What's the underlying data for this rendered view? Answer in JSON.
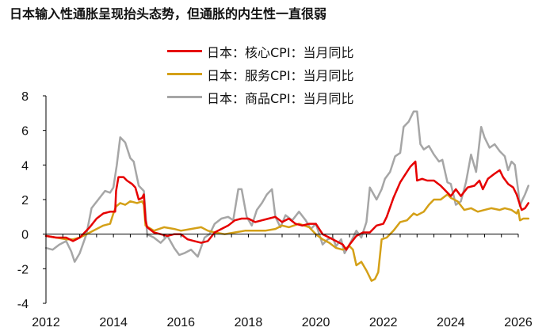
{
  "chart_data": {
    "type": "line",
    "title": "日本输入性通胀呈现抬头态势，但通胀的内生性一直很弱",
    "xlabel": "",
    "ylabel": "",
    "xlim": [
      2012.0,
      2026.1
    ],
    "ylim": [
      -4,
      8
    ],
    "x_ticks": [
      2012,
      2014,
      2016,
      2018,
      2020,
      2022,
      2024,
      2026
    ],
    "x_tick_labels": [
      "2012",
      "2014",
      "2016",
      "2018",
      "2020",
      "2022",
      "2024",
      "2026"
    ],
    "y_ticks": [
      -4,
      -2,
      0,
      2,
      4,
      6,
      8
    ],
    "y_tick_labels": [
      "-4",
      "-2",
      "0",
      "2",
      "4",
      "6",
      "8"
    ],
    "grid": false,
    "legend_position": "top-center",
    "series": [
      {
        "name": "日本：核心CPI：当月同比",
        "color": "#e60000",
        "points": [
          [
            2012.0,
            -0.1
          ],
          [
            2012.3,
            -0.2
          ],
          [
            2012.6,
            -0.2
          ],
          [
            2012.8,
            -0.4
          ],
          [
            2013.0,
            -0.2
          ],
          [
            2013.3,
            0.4
          ],
          [
            2013.5,
            0.9
          ],
          [
            2013.7,
            1.2
          ],
          [
            2013.9,
            1.3
          ],
          [
            2013.95,
            1.3
          ],
          [
            2014.05,
            1.3
          ],
          [
            2014.08,
            2.5
          ],
          [
            2014.15,
            3.3
          ],
          [
            2014.3,
            3.3
          ],
          [
            2014.4,
            3.1
          ],
          [
            2014.55,
            2.9
          ],
          [
            2014.65,
            2.7
          ],
          [
            2014.75,
            2.0
          ],
          [
            2014.85,
            2.1
          ],
          [
            2014.9,
            2.3
          ],
          [
            2014.95,
            0.8
          ],
          [
            2015.0,
            0.4
          ],
          [
            2015.2,
            0.1
          ],
          [
            2015.4,
            0.0
          ],
          [
            2015.6,
            -0.1
          ],
          [
            2015.8,
            0.0
          ],
          [
            2016.0,
            0.0
          ],
          [
            2016.2,
            -0.3
          ],
          [
            2016.4,
            -0.4
          ],
          [
            2016.6,
            -0.5
          ],
          [
            2016.8,
            -0.4
          ],
          [
            2017.0,
            0.1
          ],
          [
            2017.2,
            0.3
          ],
          [
            2017.4,
            0.5
          ],
          [
            2017.6,
            0.8
          ],
          [
            2017.8,
            0.9
          ],
          [
            2018.0,
            0.9
          ],
          [
            2018.2,
            0.7
          ],
          [
            2018.4,
            0.8
          ],
          [
            2018.6,
            0.9
          ],
          [
            2018.8,
            1.0
          ],
          [
            2019.0,
            0.7
          ],
          [
            2019.2,
            0.9
          ],
          [
            2019.4,
            0.6
          ],
          [
            2019.6,
            0.5
          ],
          [
            2019.8,
            0.6
          ],
          [
            2020.0,
            0.6
          ],
          [
            2020.2,
            0.0
          ],
          [
            2020.4,
            -0.2
          ],
          [
            2020.6,
            -0.4
          ],
          [
            2020.8,
            -0.6
          ],
          [
            2020.9,
            -0.9
          ],
          [
            2021.0,
            -0.6
          ],
          [
            2021.2,
            -0.1
          ],
          [
            2021.4,
            0.1
          ],
          [
            2021.6,
            0.1
          ],
          [
            2021.8,
            0.5
          ],
          [
            2022.0,
            0.6
          ],
          [
            2022.1,
            1.0
          ],
          [
            2022.3,
            2.1
          ],
          [
            2022.5,
            3.0
          ],
          [
            2022.7,
            3.6
          ],
          [
            2022.8,
            3.9
          ],
          [
            2022.95,
            4.2
          ],
          [
            2023.0,
            3.1
          ],
          [
            2023.15,
            3.2
          ],
          [
            2023.3,
            3.1
          ],
          [
            2023.5,
            3.1
          ],
          [
            2023.7,
            2.8
          ],
          [
            2023.9,
            2.4
          ],
          [
            2024.0,
            2.2
          ],
          [
            2024.15,
            2.6
          ],
          [
            2024.3,
            2.2
          ],
          [
            2024.5,
            2.7
          ],
          [
            2024.7,
            2.8
          ],
          [
            2024.85,
            3.1
          ],
          [
            2024.95,
            2.6
          ],
          [
            2025.1,
            3.2
          ],
          [
            2025.3,
            3.5
          ],
          [
            2025.45,
            3.7
          ],
          [
            2025.55,
            3.3
          ],
          [
            2025.7,
            2.9
          ],
          [
            2025.85,
            2.7
          ],
          [
            2025.95,
            2.3
          ],
          [
            2026.0,
            2.0
          ],
          [
            2026.05,
            1.7
          ],
          [
            2026.1,
            1.4
          ],
          [
            2026.2,
            1.5
          ],
          [
            2026.3,
            1.8
          ]
        ]
      },
      {
        "name": "日本：服务CPI：当月同比",
        "color": "#d4a017",
        "points": [
          [
            2012.0,
            -0.1
          ],
          [
            2012.3,
            -0.2
          ],
          [
            2012.6,
            -0.3
          ],
          [
            2012.8,
            -0.3
          ],
          [
            2013.0,
            -0.2
          ],
          [
            2013.2,
            0.0
          ],
          [
            2013.5,
            0.3
          ],
          [
            2013.7,
            0.5
          ],
          [
            2013.9,
            0.6
          ],
          [
            2014.0,
            1.2
          ],
          [
            2014.08,
            1.6
          ],
          [
            2014.2,
            1.8
          ],
          [
            2014.35,
            1.7
          ],
          [
            2014.5,
            1.9
          ],
          [
            2014.7,
            1.8
          ],
          [
            2014.85,
            1.9
          ],
          [
            2014.9,
            1.7
          ],
          [
            2014.95,
            0.5
          ],
          [
            2015.2,
            0.2
          ],
          [
            2015.5,
            0.4
          ],
          [
            2015.8,
            0.3
          ],
          [
            2016.0,
            0.2
          ],
          [
            2016.3,
            0.3
          ],
          [
            2016.6,
            0.4
          ],
          [
            2016.8,
            0.2
          ],
          [
            2017.0,
            0.1
          ],
          [
            2017.3,
            0.0
          ],
          [
            2017.6,
            0.1
          ],
          [
            2017.9,
            0.2
          ],
          [
            2018.2,
            0.2
          ],
          [
            2018.5,
            0.2
          ],
          [
            2018.8,
            0.3
          ],
          [
            2019.0,
            0.5
          ],
          [
            2019.2,
            0.4
          ],
          [
            2019.5,
            0.6
          ],
          [
            2019.8,
            0.4
          ],
          [
            2020.0,
            0.0
          ],
          [
            2020.2,
            -0.3
          ],
          [
            2020.4,
            -0.5
          ],
          [
            2020.6,
            -0.8
          ],
          [
            2020.8,
            -0.9
          ],
          [
            2021.0,
            -0.7
          ],
          [
            2021.1,
            -0.9
          ],
          [
            2021.2,
            -1.8
          ],
          [
            2021.35,
            -1.6
          ],
          [
            2021.5,
            -2.1
          ],
          [
            2021.65,
            -2.7
          ],
          [
            2021.75,
            -2.6
          ],
          [
            2021.85,
            -2.2
          ],
          [
            2021.95,
            -0.3
          ],
          [
            2022.1,
            -0.2
          ],
          [
            2022.3,
            0.2
          ],
          [
            2022.5,
            0.7
          ],
          [
            2022.7,
            0.8
          ],
          [
            2022.9,
            1.2
          ],
          [
            2023.0,
            1.1
          ],
          [
            2023.2,
            1.3
          ],
          [
            2023.35,
            1.7
          ],
          [
            2023.5,
            2.0
          ],
          [
            2023.7,
            2.0
          ],
          [
            2023.9,
            2.3
          ],
          [
            2024.0,
            2.1
          ],
          [
            2024.2,
            1.9
          ],
          [
            2024.4,
            1.4
          ],
          [
            2024.6,
            1.5
          ],
          [
            2024.8,
            1.3
          ],
          [
            2025.0,
            1.4
          ],
          [
            2025.2,
            1.5
          ],
          [
            2025.45,
            1.4
          ],
          [
            2025.6,
            1.5
          ],
          [
            2025.8,
            1.4
          ],
          [
            2025.95,
            1.2
          ],
          [
            2026.0,
            1.4
          ],
          [
            2026.05,
            0.8
          ],
          [
            2026.15,
            0.9
          ],
          [
            2026.3,
            0.9
          ]
        ]
      },
      {
        "name": "日本：商品CPI：当月同比",
        "color": "#a6a6a6",
        "points": [
          [
            2012.0,
            -0.8
          ],
          [
            2012.2,
            -0.9
          ],
          [
            2012.4,
            -0.6
          ],
          [
            2012.6,
            -0.4
          ],
          [
            2012.75,
            -1.0
          ],
          [
            2012.85,
            -1.6
          ],
          [
            2013.0,
            -1.1
          ],
          [
            2013.2,
            0.0
          ],
          [
            2013.35,
            1.5
          ],
          [
            2013.55,
            2.0
          ],
          [
            2013.75,
            2.5
          ],
          [
            2013.9,
            2.4
          ],
          [
            2014.0,
            2.7
          ],
          [
            2014.1,
            4.0
          ],
          [
            2014.2,
            5.6
          ],
          [
            2014.35,
            5.3
          ],
          [
            2014.5,
            4.4
          ],
          [
            2014.6,
            4.2
          ],
          [
            2014.75,
            2.8
          ],
          [
            2014.9,
            2.5
          ],
          [
            2015.0,
            0.0
          ],
          [
            2015.2,
            -0.2
          ],
          [
            2015.4,
            -0.5
          ],
          [
            2015.6,
            -0.1
          ],
          [
            2015.8,
            -0.8
          ],
          [
            2015.95,
            -1.2
          ],
          [
            2016.1,
            -1.1
          ],
          [
            2016.3,
            -0.9
          ],
          [
            2016.5,
            -1.3
          ],
          [
            2016.7,
            -0.2
          ],
          [
            2016.85,
            0.0
          ],
          [
            2017.0,
            0.6
          ],
          [
            2017.2,
            0.9
          ],
          [
            2017.4,
            1.0
          ],
          [
            2017.55,
            0.8
          ],
          [
            2017.7,
            2.6
          ],
          [
            2017.8,
            2.6
          ],
          [
            2017.95,
            1.0
          ],
          [
            2018.1,
            0.5
          ],
          [
            2018.25,
            1.4
          ],
          [
            2018.4,
            1.8
          ],
          [
            2018.55,
            2.3
          ],
          [
            2018.7,
            2.6
          ],
          [
            2018.8,
            1.0
          ],
          [
            2018.95,
            0.4
          ],
          [
            2019.1,
            1.1
          ],
          [
            2019.3,
            0.8
          ],
          [
            2019.5,
            1.3
          ],
          [
            2019.7,
            0.8
          ],
          [
            2019.85,
            0.3
          ],
          [
            2020.0,
            0.6
          ],
          [
            2020.2,
            -0.6
          ],
          [
            2020.35,
            -0.3
          ],
          [
            2020.5,
            -0.2
          ],
          [
            2020.6,
            -0.7
          ],
          [
            2020.75,
            -0.3
          ],
          [
            2020.85,
            -1.1
          ],
          [
            2021.0,
            -0.6
          ],
          [
            2021.2,
            0.2
          ],
          [
            2021.35,
            -0.2
          ],
          [
            2021.5,
            0.7
          ],
          [
            2021.6,
            2.7
          ],
          [
            2021.8,
            2.0
          ],
          [
            2021.95,
            2.6
          ],
          [
            2022.05,
            3.2
          ],
          [
            2022.2,
            3.6
          ],
          [
            2022.35,
            4.5
          ],
          [
            2022.5,
            4.7
          ],
          [
            2022.6,
            6.2
          ],
          [
            2022.75,
            6.5
          ],
          [
            2022.9,
            7.1
          ],
          [
            2023.0,
            7.1
          ],
          [
            2023.1,
            5.2
          ],
          [
            2023.2,
            4.9
          ],
          [
            2023.35,
            5.1
          ],
          [
            2023.5,
            4.6
          ],
          [
            2023.65,
            4.2
          ],
          [
            2023.75,
            4.3
          ],
          [
            2023.9,
            3.0
          ],
          [
            2024.0,
            2.9
          ],
          [
            2024.15,
            1.7
          ],
          [
            2024.3,
            1.9
          ],
          [
            2024.45,
            3.0
          ],
          [
            2024.6,
            4.6
          ],
          [
            2024.75,
            3.6
          ],
          [
            2024.9,
            6.2
          ],
          [
            2025.0,
            5.6
          ],
          [
            2025.15,
            5.0
          ],
          [
            2025.3,
            5.2
          ],
          [
            2025.45,
            4.8
          ],
          [
            2025.6,
            4.5
          ],
          [
            2025.7,
            3.7
          ],
          [
            2025.8,
            4.2
          ],
          [
            2025.9,
            4.0
          ],
          [
            2026.0,
            2.5
          ],
          [
            2026.05,
            1.6
          ],
          [
            2026.1,
            1.9
          ],
          [
            2026.2,
            2.3
          ],
          [
            2026.3,
            2.8
          ]
        ]
      }
    ]
  }
}
